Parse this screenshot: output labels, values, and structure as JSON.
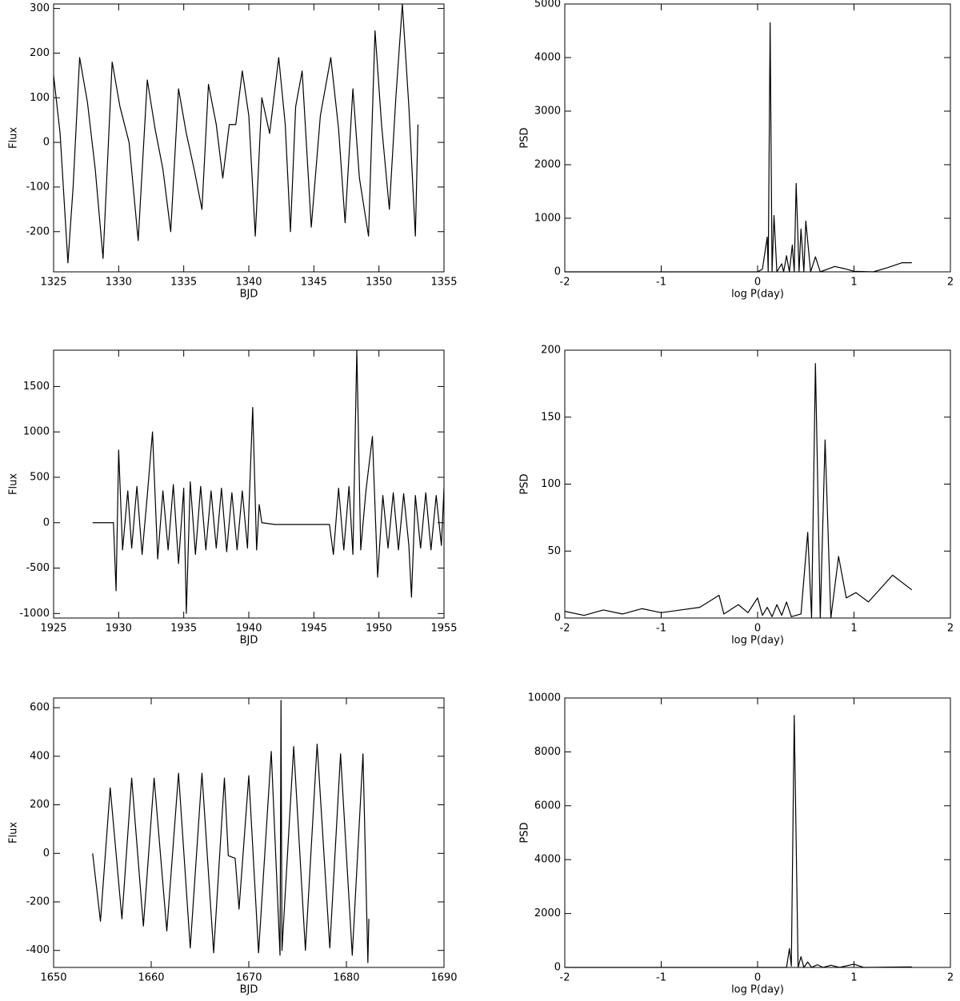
{
  "chart_data": [
    {
      "type": "line",
      "xlabel": "BJD",
      "ylabel": "Flux",
      "color": "#000000",
      "xlim": [
        1325,
        1355
      ],
      "ylim": [
        -290,
        310
      ],
      "xticks": [
        1325,
        1330,
        1335,
        1340,
        1345,
        1350,
        1355
      ],
      "yticks": [
        -200,
        -100,
        0,
        100,
        200,
        300
      ],
      "x": [
        1325,
        1325.5,
        1326.1,
        1326.5,
        1327,
        1327.6,
        1328.2,
        1328.8,
        1329.5,
        1330.1,
        1330.8,
        1331.5,
        1332.2,
        1332.8,
        1333.4,
        1334.0,
        1334.6,
        1335.2,
        1335.8,
        1336.4,
        1336.9,
        1337.5,
        1338.0,
        1338.5,
        1339.0,
        1339.5,
        1340.0,
        1340.5,
        1341.0,
        1341.6,
        1342.3,
        1342.8,
        1343.2,
        1343.6,
        1344.1,
        1344.8,
        1345.5,
        1346.3,
        1346.9,
        1347.4,
        1348.0,
        1348.5,
        1349.2,
        1349.7,
        1350.2,
        1350.8,
        1351.3,
        1351.8,
        1352.3,
        1352.8,
        1353.0
      ],
      "values": [
        150,
        20,
        -270,
        -100,
        190,
        90,
        -60,
        -260,
        180,
        80,
        0,
        -220,
        140,
        30,
        -60,
        -200,
        120,
        20,
        -60,
        -150,
        130,
        40,
        -80,
        40,
        40,
        160,
        60,
        -210,
        100,
        20,
        190,
        40,
        -200,
        80,
        160,
        -190,
        60,
        190,
        30,
        -180,
        120,
        -80,
        -210,
        250,
        40,
        -150,
        100,
        310,
        80,
        -210,
        40
      ]
    },
    {
      "type": "line",
      "xlabel": "log P(day)",
      "ylabel": "PSD",
      "color": "#000000",
      "xlim": [
        -2,
        2
      ],
      "ylim": [
        0,
        5000
      ],
      "xticks": [
        -2,
        -1,
        0,
        1,
        2
      ],
      "yticks": [
        0,
        1000,
        2000,
        3000,
        4000,
        5000
      ],
      "x": [
        -2,
        0,
        0.05,
        0.1,
        0.11,
        0.13,
        0.15,
        0.17,
        0.2,
        0.25,
        0.27,
        0.3,
        0.33,
        0.36,
        0.38,
        0.4,
        0.43,
        0.45,
        0.48,
        0.5,
        0.55,
        0.6,
        0.65,
        0.8,
        0.9,
        1.0,
        1.2,
        1.35,
        1.5,
        1.6
      ],
      "values": [
        0,
        0,
        50,
        650,
        0,
        4650,
        0,
        1050,
        0,
        150,
        0,
        300,
        0,
        500,
        0,
        1650,
        0,
        800,
        0,
        950,
        0,
        280,
        0,
        100,
        60,
        10,
        0,
        80,
        170,
        170
      ]
    },
    {
      "type": "line",
      "xlabel": "BJD",
      "ylabel": "Flux",
      "color": "#000000",
      "xlim": [
        1925,
        1955
      ],
      "ylim": [
        -1050,
        1900
      ],
      "xticks": [
        1925,
        1930,
        1935,
        1940,
        1945,
        1950,
        1955
      ],
      "yticks": [
        -1000,
        -500,
        0,
        500,
        1000,
        1500
      ],
      "x": [
        1928,
        1929.6,
        1929.8,
        1930.0,
        1930.3,
        1930.7,
        1931.0,
        1931.4,
        1931.8,
        1932.2,
        1932.6,
        1933.0,
        1933.4,
        1933.8,
        1934.2,
        1934.6,
        1935.0,
        1935.2,
        1935.5,
        1935.9,
        1936.3,
        1936.7,
        1937.1,
        1937.5,
        1937.9,
        1938.3,
        1938.7,
        1939.1,
        1939.5,
        1939.9,
        1940.3,
        1940.6,
        1940.8,
        1941.0,
        1942.0,
        1946.2,
        1946.5,
        1946.9,
        1947.3,
        1947.7,
        1948.0,
        1948.3,
        1948.6,
        1949.0,
        1949.5,
        1949.9,
        1950.3,
        1950.7,
        1951.1,
        1951.5,
        1951.9,
        1952.3,
        1952.5,
        1952.8,
        1953.2,
        1953.6,
        1954.0,
        1954.4,
        1954.8,
        1955.0
      ],
      "values": [
        0,
        0,
        -750,
        800,
        -300,
        350,
        -280,
        400,
        -350,
        300,
        1000,
        -400,
        350,
        -300,
        420,
        -450,
        380,
        -1000,
        450,
        -350,
        400,
        -300,
        350,
        -280,
        380,
        -320,
        330,
        -300,
        350,
        -280,
        1270,
        -300,
        200,
        0,
        -20,
        -20,
        -350,
        380,
        -300,
        400,
        -350,
        1900,
        -300,
        350,
        950,
        -600,
        300,
        -280,
        330,
        -300,
        320,
        -250,
        -820,
        300,
        -280,
        330,
        -300,
        300,
        -250,
        380
      ]
    },
    {
      "type": "line",
      "xlabel": "log P(day)",
      "ylabel": "PSD",
      "color": "#000000",
      "xlim": [
        -2,
        2
      ],
      "ylim": [
        0,
        200
      ],
      "xticks": [
        -2,
        -1,
        0,
        1,
        2
      ],
      "yticks": [
        0,
        50,
        100,
        150,
        200
      ],
      "x": [
        -2,
        -1.8,
        -1.6,
        -1.4,
        -1.2,
        -1.0,
        -0.8,
        -0.6,
        -0.4,
        -0.35,
        -0.2,
        -0.1,
        0,
        0.05,
        0.1,
        0.15,
        0.2,
        0.25,
        0.3,
        0.35,
        0.45,
        0.52,
        0.56,
        0.6,
        0.65,
        0.7,
        0.76,
        0.84,
        0.92,
        1.02,
        1.15,
        1.4,
        1.6
      ],
      "values": [
        5,
        2,
        6,
        3,
        7,
        4,
        6,
        8,
        17,
        3,
        10,
        4,
        15,
        2,
        8,
        1,
        10,
        2,
        12,
        1,
        3,
        64,
        0,
        190,
        0,
        133,
        0,
        46,
        15,
        19,
        12,
        32,
        21
      ]
    },
    {
      "type": "line",
      "xlabel": "BJD",
      "ylabel": "Flux",
      "color": "#000000",
      "xlim": [
        1650,
        1690
      ],
      "ylim": [
        -470,
        640
      ],
      "xticks": [
        1650,
        1660,
        1670,
        1680,
        1690
      ],
      "yticks": [
        -400,
        -200,
        0,
        200,
        400,
        600
      ],
      "x": [
        1654.0,
        1654.8,
        1655.8,
        1657.0,
        1658.0,
        1659.2,
        1660.3,
        1661.6,
        1662.8,
        1664.0,
        1665.2,
        1666.4,
        1667.5,
        1667.9,
        1668.6,
        1669.0,
        1670.0,
        1671.0,
        1672.3,
        1673.2,
        1673.3,
        1673.4,
        1674.6,
        1675.8,
        1677.0,
        1678.3,
        1679.4,
        1680.6,
        1681.7,
        1682.2,
        1682.3
      ],
      "values": [
        0,
        -280,
        270,
        -270,
        310,
        -300,
        310,
        -320,
        330,
        -390,
        330,
        -410,
        310,
        -10,
        -20,
        -230,
        320,
        -410,
        420,
        -420,
        630,
        -400,
        440,
        -400,
        450,
        -390,
        410,
        -420,
        410,
        -450,
        -270
      ]
    },
    {
      "type": "line",
      "xlabel": "log P(day)",
      "ylabel": "PSD",
      "color": "#000000",
      "xlim": [
        -2,
        2
      ],
      "ylim": [
        0,
        10000
      ],
      "xticks": [
        -2,
        -1,
        0,
        1,
        2
      ],
      "yticks": [
        0,
        2000,
        4000,
        6000,
        8000,
        10000
      ],
      "x": [
        -2,
        0.3,
        0.33,
        0.35,
        0.38,
        0.42,
        0.45,
        0.48,
        0.52,
        0.56,
        0.62,
        0.68,
        0.76,
        0.85,
        1.0,
        1.1,
        1.6
      ],
      "values": [
        0,
        0,
        700,
        50,
        9350,
        0,
        400,
        0,
        200,
        0,
        100,
        0,
        80,
        0,
        120,
        0,
        20
      ]
    }
  ]
}
